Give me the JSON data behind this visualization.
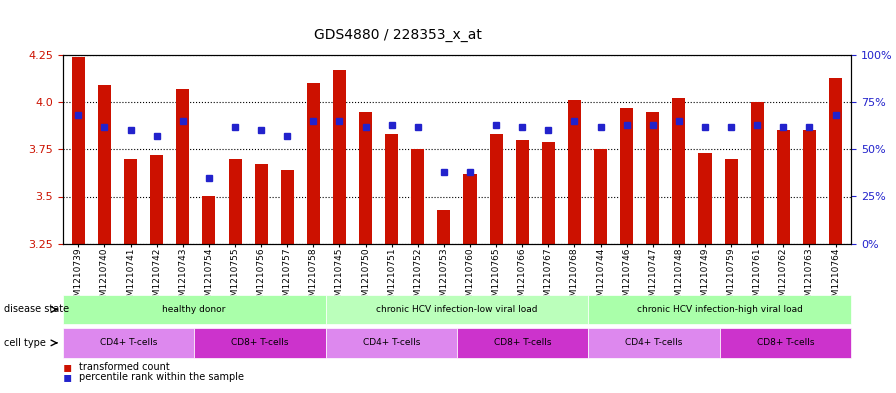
{
  "title": "GDS4880 / 228353_x_at",
  "samples": [
    "GSM1210739",
    "GSM1210740",
    "GSM1210741",
    "GSM1210742",
    "GSM1210743",
    "GSM1210754",
    "GSM1210755",
    "GSM1210756",
    "GSM1210757",
    "GSM1210758",
    "GSM1210745",
    "GSM1210750",
    "GSM1210751",
    "GSM1210752",
    "GSM1210753",
    "GSM1210760",
    "GSM1210765",
    "GSM1210766",
    "GSM1210767",
    "GSM1210768",
    "GSM1210744",
    "GSM1210746",
    "GSM1210747",
    "GSM1210748",
    "GSM1210749",
    "GSM1210759",
    "GSM1210761",
    "GSM1210762",
    "GSM1210763",
    "GSM1210764"
  ],
  "transformed_count": [
    4.24,
    4.09,
    3.7,
    3.72,
    4.07,
    3.5,
    3.7,
    3.67,
    3.64,
    4.1,
    4.17,
    3.95,
    3.83,
    3.75,
    3.43,
    3.62,
    3.83,
    3.8,
    3.79,
    4.01,
    3.75,
    3.97,
    3.95,
    4.02,
    3.73,
    3.7,
    4.0,
    3.85,
    3.85,
    4.13
  ],
  "percentile_rank": [
    68,
    62,
    60,
    57,
    65,
    35,
    62,
    60,
    57,
    65,
    65,
    62,
    63,
    62,
    38,
    38,
    63,
    62,
    60,
    65,
    62,
    63,
    63,
    65,
    62,
    62,
    63,
    62,
    62,
    68
  ],
  "ylim_left": [
    3.25,
    4.25
  ],
  "ylim_right": [
    0,
    100
  ],
  "bar_color": "#cc1100",
  "dot_color": "#2222cc",
  "grid_color": "#888888",
  "yticks_left": [
    3.25,
    3.5,
    3.75,
    4.0,
    4.25
  ],
  "yticks_right": [
    0,
    25,
    50,
    75,
    100
  ],
  "disease_states": [
    {
      "label": "healthy donor",
      "start": 0,
      "end": 10,
      "color": "#aaffaa"
    },
    {
      "label": "chronic HCV infection-low viral load",
      "start": 10,
      "end": 20,
      "color": "#aaffaa"
    },
    {
      "label": "chronic HCV infection-high viral load",
      "start": 20,
      "end": 30,
      "color": "#aaffaa"
    }
  ],
  "cell_types": [
    {
      "label": "CD4+ T-cells",
      "start": 0,
      "end": 5,
      "color": "#dd88dd"
    },
    {
      "label": "CD8+ T-cells",
      "start": 5,
      "end": 10,
      "color": "#cc44cc"
    },
    {
      "label": "CD4+ T-cells",
      "start": 10,
      "end": 15,
      "color": "#dd88dd"
    },
    {
      "label": "CD8+ T-cells",
      "start": 15,
      "end": 20,
      "color": "#cc44cc"
    },
    {
      "label": "CD4+ T-cells",
      "start": 20,
      "end": 25,
      "color": "#dd88dd"
    },
    {
      "label": "CD8+ T-cells",
      "start": 25,
      "end": 30,
      "color": "#cc44cc"
    }
  ],
  "legend_items": [
    {
      "label": "transformed count",
      "color": "#cc1100",
      "marker": "s"
    },
    {
      "label": "percentile rank within the sample",
      "color": "#2222cc",
      "marker": "s"
    }
  ]
}
